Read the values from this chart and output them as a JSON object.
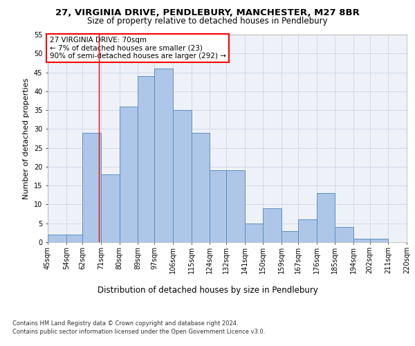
{
  "title1": "27, VIRGINIA DRIVE, PENDLEBURY, MANCHESTER, M27 8BR",
  "title2": "Size of property relative to detached houses in Pendlebury",
  "xlabel": "Distribution of detached houses by size in Pendlebury",
  "ylabel": "Number of detached properties",
  "bin_edges": [
    45,
    54,
    62,
    71,
    80,
    89,
    97,
    106,
    115,
    124,
    132,
    141,
    150,
    159,
    167,
    176,
    185,
    194,
    202,
    211,
    220
  ],
  "bar_heights": [
    2,
    2,
    29,
    18,
    36,
    44,
    46,
    35,
    29,
    19,
    19,
    5,
    9,
    3,
    6,
    13,
    4,
    1,
    1,
    0
  ],
  "bar_color": "#aec6e8",
  "bar_edge_color": "#5a8fc0",
  "vline_x": 70,
  "vline_color": "red",
  "annotation_title": "27 VIRGINIA DRIVE: 70sqm",
  "annotation_line1": "← 7% of detached houses are smaller (23)",
  "annotation_line2": "90% of semi-detached houses are larger (292) →",
  "annotation_box_color": "red",
  "ylim": [
    0,
    55
  ],
  "yticks": [
    0,
    5,
    10,
    15,
    20,
    25,
    30,
    35,
    40,
    45,
    50,
    55
  ],
  "tick_labels": [
    "45sqm",
    "54sqm",
    "62sqm",
    "71sqm",
    "80sqm",
    "89sqm",
    "97sqm",
    "106sqm",
    "115sqm",
    "124sqm",
    "132sqm",
    "141sqm",
    "150sqm",
    "159sqm",
    "167sqm",
    "176sqm",
    "185sqm",
    "194sqm",
    "202sqm",
    "211sqm",
    "220sqm"
  ],
  "footer1": "Contains HM Land Registry data © Crown copyright and database right 2024.",
  "footer2": "Contains public sector information licensed under the Open Government Licence v3.0.",
  "grid_color": "#d0d8e8",
  "bg_color": "#eef2f8",
  "title1_fontsize": 9.5,
  "title2_fontsize": 8.5,
  "ylabel_fontsize": 8,
  "xlabel_fontsize": 8.5,
  "tick_fontsize": 7,
  "annotation_fontsize": 7.5,
  "footer_fontsize": 6.0
}
